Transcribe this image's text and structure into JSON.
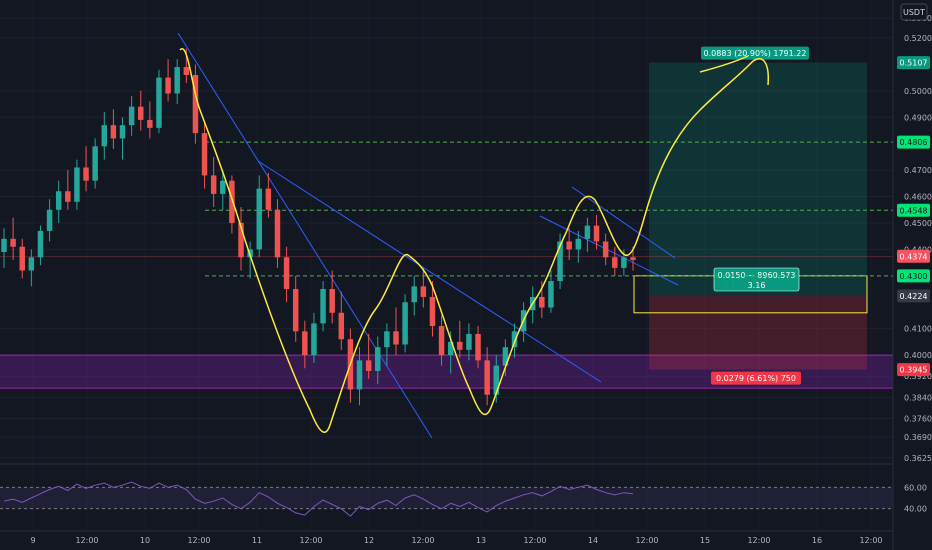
{
  "chart_data": {
    "type": "candlestick",
    "quote_unit": "USDT",
    "y_axis_ticks": [
      "0.5300",
      "0.5200",
      "0.5107",
      "0.5000",
      "0.4900",
      "0.4806",
      "0.4700",
      "0.4600",
      "0.4548",
      "0.4500",
      "0.4400",
      "0.4374",
      "0.4300",
      "0.4224",
      "0.4100",
      "0.4000",
      "0.3945",
      "0.3920",
      "0.3840",
      "0.3760",
      "0.3690",
      "0.3625"
    ],
    "x_axis_ticks": [
      "9",
      "12:00",
      "10",
      "12:00",
      "11",
      "12:00",
      "12",
      "12:00",
      "13",
      "12:00",
      "14",
      "12:00",
      "15",
      "12:00",
      "16",
      "12:00"
    ],
    "price_badges": [
      {
        "label": "0.5107",
        "value": 0.5107,
        "color": "#089981"
      },
      {
        "label": "0.4806",
        "value": 0.4806,
        "color": "#00e676"
      },
      {
        "label": "0.4548",
        "value": 0.4548,
        "color": "#00e676"
      },
      {
        "label": "0.4374",
        "value": 0.4374,
        "color": "#f7525f"
      },
      {
        "label": "0.4300",
        "value": 0.43,
        "color": "#00e676"
      },
      {
        "label": "0.4224",
        "value": 0.4224,
        "color": "#363a45"
      },
      {
        "label": "0.3945",
        "value": 0.3945,
        "color": "#f23645"
      }
    ],
    "horizontal_levels": [
      {
        "value": 0.4806,
        "style": "dashed",
        "color": "#4caf50"
      },
      {
        "value": 0.4548,
        "style": "dashed",
        "color": "#4caf50"
      },
      {
        "value": 0.43,
        "style": "dashed",
        "color": "#4caf50"
      }
    ],
    "zone_band": {
      "from": 0.3875,
      "to": 0.4,
      "color": "#7b1fa2"
    },
    "position": {
      "entry": 0.4224,
      "target": 0.5107,
      "stop": 0.3945,
      "target_label": "0.0883 (20.90%) 1791.22",
      "stop_label": "0.0279 (6.61%) 750",
      "center_label_line1": "0.0150 ~ 8960.573",
      "center_label_line2": "3.16"
    },
    "candles": [
      {
        "o": 0.439,
        "h": 0.448,
        "l": 0.433,
        "c": 0.444
      },
      {
        "o": 0.444,
        "h": 0.452,
        "l": 0.436,
        "c": 0.441
      },
      {
        "o": 0.441,
        "h": 0.444,
        "l": 0.429,
        "c": 0.432
      },
      {
        "o": 0.432,
        "h": 0.44,
        "l": 0.426,
        "c": 0.437
      },
      {
        "o": 0.437,
        "h": 0.449,
        "l": 0.434,
        "c": 0.447
      },
      {
        "o": 0.447,
        "h": 0.459,
        "l": 0.443,
        "c": 0.455
      },
      {
        "o": 0.455,
        "h": 0.466,
        "l": 0.45,
        "c": 0.462
      },
      {
        "o": 0.462,
        "h": 0.47,
        "l": 0.455,
        "c": 0.458
      },
      {
        "o": 0.458,
        "h": 0.474,
        "l": 0.455,
        "c": 0.471
      },
      {
        "o": 0.471,
        "h": 0.479,
        "l": 0.462,
        "c": 0.466
      },
      {
        "o": 0.466,
        "h": 0.482,
        "l": 0.463,
        "c": 0.479
      },
      {
        "o": 0.479,
        "h": 0.492,
        "l": 0.474,
        "c": 0.487
      },
      {
        "o": 0.487,
        "h": 0.493,
        "l": 0.478,
        "c": 0.482
      },
      {
        "o": 0.482,
        "h": 0.49,
        "l": 0.474,
        "c": 0.487
      },
      {
        "o": 0.487,
        "h": 0.498,
        "l": 0.483,
        "c": 0.494
      },
      {
        "o": 0.494,
        "h": 0.5,
        "l": 0.485,
        "c": 0.489
      },
      {
        "o": 0.489,
        "h": 0.496,
        "l": 0.482,
        "c": 0.486
      },
      {
        "o": 0.486,
        "h": 0.508,
        "l": 0.484,
        "c": 0.505
      },
      {
        "o": 0.505,
        "h": 0.512,
        "l": 0.496,
        "c": 0.499
      },
      {
        "o": 0.499,
        "h": 0.512,
        "l": 0.495,
        "c": 0.509
      },
      {
        "o": 0.509,
        "h": 0.516,
        "l": 0.503,
        "c": 0.506
      },
      {
        "o": 0.506,
        "h": 0.51,
        "l": 0.48,
        "c": 0.484
      },
      {
        "o": 0.484,
        "h": 0.488,
        "l": 0.463,
        "c": 0.468
      },
      {
        "o": 0.468,
        "h": 0.475,
        "l": 0.456,
        "c": 0.461
      },
      {
        "o": 0.461,
        "h": 0.47,
        "l": 0.455,
        "c": 0.466
      },
      {
        "o": 0.466,
        "h": 0.468,
        "l": 0.446,
        "c": 0.45
      },
      {
        "o": 0.45,
        "h": 0.456,
        "l": 0.432,
        "c": 0.437
      },
      {
        "o": 0.437,
        "h": 0.443,
        "l": 0.429,
        "c": 0.44
      },
      {
        "o": 0.44,
        "h": 0.468,
        "l": 0.437,
        "c": 0.463
      },
      {
        "o": 0.463,
        "h": 0.469,
        "l": 0.452,
        "c": 0.455
      },
      {
        "o": 0.455,
        "h": 0.459,
        "l": 0.433,
        "c": 0.437
      },
      {
        "o": 0.437,
        "h": 0.441,
        "l": 0.42,
        "c": 0.425
      },
      {
        "o": 0.425,
        "h": 0.43,
        "l": 0.405,
        "c": 0.409
      },
      {
        "o": 0.409,
        "h": 0.413,
        "l": 0.395,
        "c": 0.4
      },
      {
        "o": 0.4,
        "h": 0.416,
        "l": 0.397,
        "c": 0.412
      },
      {
        "o": 0.412,
        "h": 0.428,
        "l": 0.409,
        "c": 0.425
      },
      {
        "o": 0.425,
        "h": 0.432,
        "l": 0.412,
        "c": 0.416
      },
      {
        "o": 0.416,
        "h": 0.424,
        "l": 0.402,
        "c": 0.406
      },
      {
        "o": 0.406,
        "h": 0.41,
        "l": 0.382,
        "c": 0.387
      },
      {
        "o": 0.387,
        "h": 0.403,
        "l": 0.381,
        "c": 0.398
      },
      {
        "o": 0.398,
        "h": 0.408,
        "l": 0.391,
        "c": 0.394
      },
      {
        "o": 0.394,
        "h": 0.407,
        "l": 0.389,
        "c": 0.403
      },
      {
        "o": 0.403,
        "h": 0.412,
        "l": 0.396,
        "c": 0.409
      },
      {
        "o": 0.409,
        "h": 0.418,
        "l": 0.4,
        "c": 0.404
      },
      {
        "o": 0.404,
        "h": 0.423,
        "l": 0.401,
        "c": 0.42
      },
      {
        "o": 0.42,
        "h": 0.43,
        "l": 0.415,
        "c": 0.426
      },
      {
        "o": 0.426,
        "h": 0.433,
        "l": 0.418,
        "c": 0.422
      },
      {
        "o": 0.422,
        "h": 0.428,
        "l": 0.407,
        "c": 0.411
      },
      {
        "o": 0.411,
        "h": 0.415,
        "l": 0.396,
        "c": 0.4
      },
      {
        "o": 0.4,
        "h": 0.409,
        "l": 0.393,
        "c": 0.405
      },
      {
        "o": 0.405,
        "h": 0.413,
        "l": 0.399,
        "c": 0.402
      },
      {
        "o": 0.402,
        "h": 0.412,
        "l": 0.398,
        "c": 0.408
      },
      {
        "o": 0.408,
        "h": 0.411,
        "l": 0.395,
        "c": 0.398
      },
      {
        "o": 0.398,
        "h": 0.403,
        "l": 0.381,
        "c": 0.385
      },
      {
        "o": 0.385,
        "h": 0.4,
        "l": 0.382,
        "c": 0.396
      },
      {
        "o": 0.396,
        "h": 0.406,
        "l": 0.392,
        "c": 0.403
      },
      {
        "o": 0.403,
        "h": 0.412,
        "l": 0.399,
        "c": 0.409
      },
      {
        "o": 0.409,
        "h": 0.42,
        "l": 0.405,
        "c": 0.417
      },
      {
        "o": 0.417,
        "h": 0.426,
        "l": 0.412,
        "c": 0.422
      },
      {
        "o": 0.422,
        "h": 0.428,
        "l": 0.414,
        "c": 0.418
      },
      {
        "o": 0.418,
        "h": 0.432,
        "l": 0.416,
        "c": 0.428
      },
      {
        "o": 0.428,
        "h": 0.446,
        "l": 0.425,
        "c": 0.443
      },
      {
        "o": 0.443,
        "h": 0.448,
        "l": 0.436,
        "c": 0.44
      },
      {
        "o": 0.44,
        "h": 0.447,
        "l": 0.435,
        "c": 0.444
      },
      {
        "o": 0.444,
        "h": 0.452,
        "l": 0.439,
        "c": 0.449
      },
      {
        "o": 0.449,
        "h": 0.453,
        "l": 0.44,
        "c": 0.443
      },
      {
        "o": 0.443,
        "h": 0.446,
        "l": 0.434,
        "c": 0.437
      },
      {
        "o": 0.437,
        "h": 0.441,
        "l": 0.43,
        "c": 0.433
      },
      {
        "o": 0.433,
        "h": 0.44,
        "l": 0.43,
        "c": 0.437
      },
      {
        "o": 0.437,
        "h": 0.441,
        "l": 0.432,
        "c": 0.436
      }
    ],
    "rsi": {
      "levels": [
        60.0,
        40.0
      ],
      "values": [
        47,
        49,
        46,
        50,
        54,
        58,
        61,
        57,
        63,
        59,
        62,
        64,
        60,
        62,
        65,
        61,
        59,
        64,
        60,
        62,
        58,
        49,
        45,
        47,
        50,
        44,
        40,
        46,
        55,
        51,
        45,
        41,
        36,
        34,
        42,
        48,
        44,
        40,
        33,
        42,
        39,
        45,
        48,
        43,
        50,
        53,
        49,
        44,
        40,
        45,
        42,
        46,
        41,
        37,
        43,
        47,
        50,
        53,
        55,
        52,
        56,
        61,
        58,
        60,
        62,
        58,
        55,
        53,
        55,
        54
      ]
    }
  }
}
